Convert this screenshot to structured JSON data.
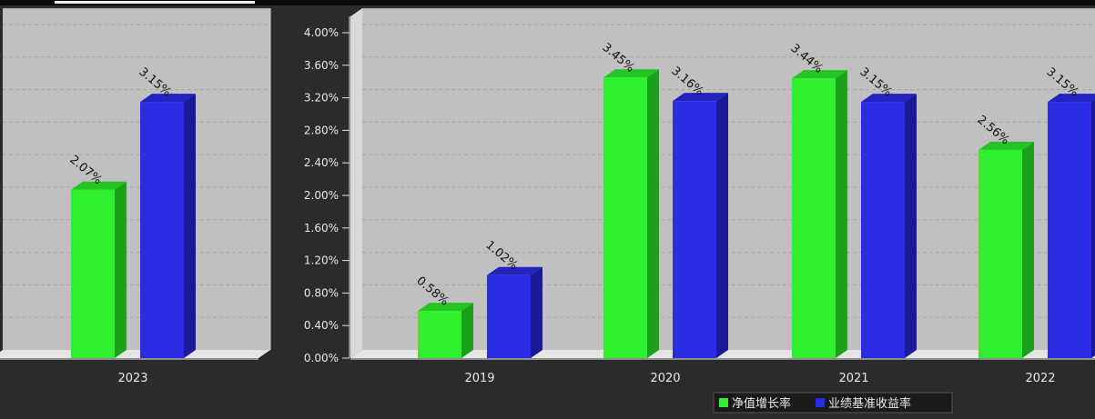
{
  "colors": {
    "background": "#2b2b2b",
    "plot_area": "#c0c0c0",
    "floor": "#e4e4e4",
    "green_front": "#2ff02f",
    "green_side": "#1aa01a",
    "green_top": "#23c423",
    "blue_front": "#2c2ce6",
    "blue_side": "#1a1a99",
    "blue_top": "#2323c0",
    "text": "#e8e8e8",
    "value_label": "#111111"
  },
  "chart_data": [
    {
      "type": "bar",
      "categories": [
        "2023"
      ],
      "series": [
        {
          "name": "净值增长率",
          "values": [
            2.07
          ],
          "labels": [
            "2.07%"
          ]
        },
        {
          "name": "业绩基准收益率",
          "values": [
            3.15
          ],
          "labels": [
            "3.15%"
          ]
        }
      ],
      "ylim": [
        0,
        4.2
      ],
      "grid": true
    },
    {
      "type": "bar",
      "categories": [
        "2019",
        "2020",
        "2021",
        "2022"
      ],
      "series": [
        {
          "name": "净值增长率",
          "values": [
            0.58,
            3.45,
            3.44,
            2.56
          ],
          "labels": [
            "0.58%",
            "3.45%",
            "3.44%",
            "2.56%"
          ]
        },
        {
          "name": "业绩基准收益率",
          "values": [
            1.02,
            3.16,
            3.15,
            3.15
          ],
          "labels": [
            "1.02%",
            "3.16%",
            "3.15%",
            "3.15%"
          ]
        }
      ],
      "yticks": [
        "0.00%",
        "0.40%",
        "0.80%",
        "1.20%",
        "1.60%",
        "2.00%",
        "2.40%",
        "2.80%",
        "3.20%",
        "3.60%",
        "4.00%"
      ],
      "ylim": [
        0,
        4.2
      ],
      "grid": true,
      "legend": {
        "position": "bottom",
        "entries": [
          "净值增长率",
          "业绩基准收益率"
        ]
      }
    }
  ]
}
